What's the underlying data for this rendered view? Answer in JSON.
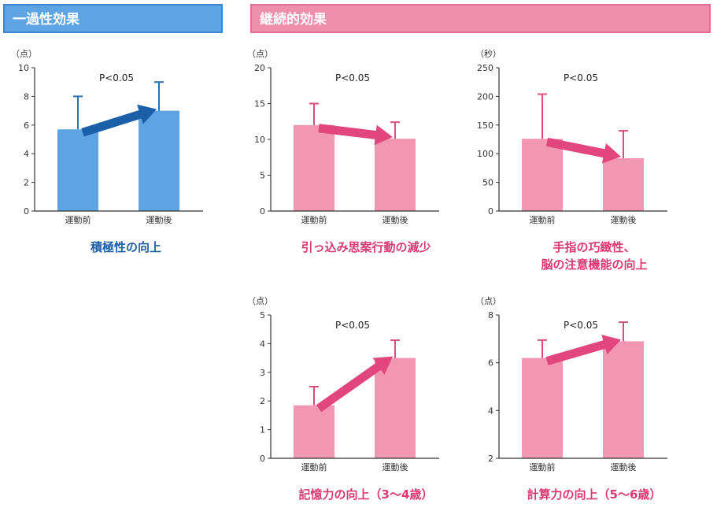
{
  "headers": {
    "single": "一過性効果",
    "continued": "継続的効果"
  },
  "colors": {
    "blue_bar": "#5fa4e2",
    "blue_arrow": "#1a5fa8",
    "blue_err": "#2e6fb4",
    "pink_bar": "#f196b3",
    "pink_arrow": "#e1467c",
    "pink_err": "#d9507f",
    "blue_text": "#1f5fa8",
    "pink_text": "#d93a72"
  },
  "chart_data": [
    {
      "type": "bar",
      "theme": "blue",
      "unit": "（点）",
      "annotation": "P<0.05",
      "categories": [
        "運動前",
        "運動後"
      ],
      "values": [
        5.7,
        7.0
      ],
      "errors": [
        2.3,
        2.0
      ],
      "ylim": [
        0,
        10
      ],
      "yticks": [
        0,
        2,
        4,
        6,
        8,
        10
      ],
      "caption": [
        "積極性の向上"
      ]
    },
    {
      "type": "bar",
      "theme": "pink",
      "unit": "（点）",
      "annotation": "P<0.05",
      "categories": [
        "運動前",
        "運動後"
      ],
      "values": [
        12.0,
        10.1
      ],
      "errors": [
        3.0,
        2.3
      ],
      "ylim": [
        0,
        20
      ],
      "yticks": [
        0,
        5,
        10,
        15,
        20
      ],
      "caption": [
        "引っ込み思案行動の減少"
      ]
    },
    {
      "type": "bar",
      "theme": "pink",
      "unit": "（秒）",
      "annotation": "P<0.05",
      "categories": [
        "運動前",
        "運動後"
      ],
      "values": [
        126,
        92
      ],
      "errors": [
        78,
        48
      ],
      "ylim": [
        0,
        250
      ],
      "yticks": [
        0,
        50,
        100,
        150,
        200,
        250
      ],
      "caption": [
        "手指の巧緻性、",
        "脳の注意機能の向上"
      ]
    },
    {
      "type": "bar",
      "theme": "pink",
      "unit": "（点）",
      "annotation": "P<0.05",
      "categories": [
        "運動前",
        "運動後"
      ],
      "values": [
        1.85,
        3.5
      ],
      "errors": [
        0.65,
        0.62
      ],
      "ylim": [
        0,
        5
      ],
      "yticks": [
        0,
        1,
        2,
        3,
        4,
        5
      ],
      "caption": [
        "記憶力の向上（3〜4歳）"
      ]
    },
    {
      "type": "bar",
      "theme": "pink",
      "unit": "（点）",
      "annotation": "P<0.05",
      "categories": [
        "運動前",
        "運動後"
      ],
      "values": [
        6.2,
        6.9
      ],
      "errors": [
        0.75,
        0.8
      ],
      "ylim": [
        2,
        8
      ],
      "yticks": [
        2,
        4,
        6,
        8
      ],
      "caption": [
        "計算力の向上（5〜6歳）"
      ]
    }
  ]
}
